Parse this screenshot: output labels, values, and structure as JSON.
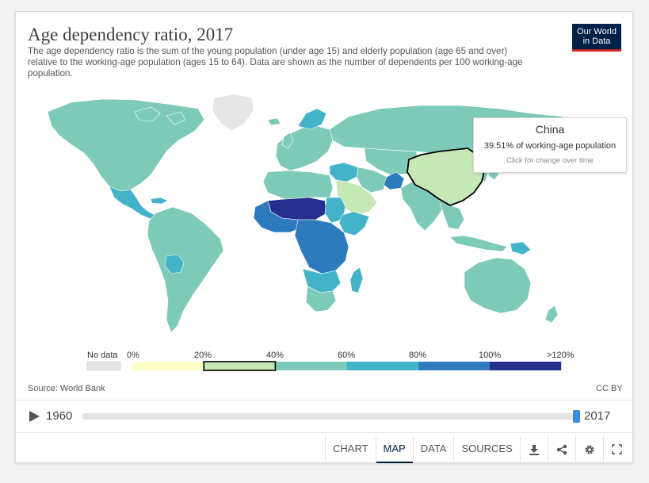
{
  "title": "Age dependency ratio, 2017",
  "subtitle": "The age dependency ratio is the sum of the young population (under age 15) and elderly population (age 65 and over) relative to the working-age population (ages 15 to 64). Data are shown as the number of dependents per 100 working-age population.",
  "logo": {
    "line1": "Our World",
    "line2": "in Data"
  },
  "tooltip": {
    "country": "China",
    "value": "39.51% of working-age population",
    "hint": "Click for change over time"
  },
  "legend": {
    "no_data_label": "No data",
    "bins": [
      {
        "from": "0%",
        "to": "20%",
        "color": "#ffffc6"
      },
      {
        "from": "20%",
        "to": "40%",
        "color": "#c6e8b5",
        "highlighted": true
      },
      {
        "from": "40%",
        "to": "60%",
        "color": "#7ecab8"
      },
      {
        "from": "60%",
        "to": "80%",
        "color": "#43b3c9"
      },
      {
        "from": "80%",
        "to": "100%",
        "color": "#2d7bbd"
      },
      {
        "from": "100%",
        "to": ">120%",
        "color": "#25308e"
      }
    ],
    "no_data_color": "#e6e6e6",
    "tick_labels": [
      "0%",
      "20%",
      "40%",
      "60%",
      "80%",
      "100%",
      ">120%"
    ]
  },
  "source": "Source: World Bank",
  "license": "CC BY",
  "timeline": {
    "start_year": "1960",
    "end_year": "2017",
    "position": 1.0
  },
  "tabs": {
    "chart": "CHART",
    "map": "MAP",
    "data": "DATA",
    "sources": "SOURCES",
    "active": "MAP"
  },
  "icons": [
    "play-icon",
    "download-icon",
    "share-icon",
    "settings-icon",
    "fullscreen-icon"
  ],
  "map_regions": [
    {
      "region": "North America",
      "color": "#7ecab8"
    },
    {
      "region": "Greenland",
      "color": "#e6e6e6"
    },
    {
      "region": "Central America",
      "color": "#43b3c9"
    },
    {
      "region": "South America",
      "color": "#7ecab8"
    },
    {
      "region": "Bolivia",
      "color": "#43b3c9"
    },
    {
      "region": "Europe",
      "color": "#7ecab8"
    },
    {
      "region": "Scandinavia",
      "color": "#43b3c9"
    },
    {
      "region": "Russia",
      "color": "#7ecab8"
    },
    {
      "region": "Kazakhstan & Central Asia",
      "color": "#7ecab8"
    },
    {
      "region": "North Africa",
      "color": "#7ecab8"
    },
    {
      "region": "Saudi Arabia & Gulf",
      "color": "#c6e8b5"
    },
    {
      "region": "Middle East",
      "color": "#43b3c9"
    },
    {
      "region": "Iran",
      "color": "#7ecab8"
    },
    {
      "region": "Afghanistan",
      "color": "#2d7bbd"
    },
    {
      "region": "Sahel",
      "color": "#25308e"
    },
    {
      "region": "West Africa",
      "color": "#2d7bbd"
    },
    {
      "region": "Sudan",
      "color": "#43b3c9"
    },
    {
      "region": "Ethiopia & Horn",
      "color": "#43b3c9"
    },
    {
      "region": "Central & East Africa",
      "color": "#2d7bbd"
    },
    {
      "region": "Southern Africa",
      "color": "#43b3c9"
    },
    {
      "region": "South Africa",
      "color": "#7ecab8"
    },
    {
      "region": "Madagascar",
      "color": "#43b3c9"
    },
    {
      "region": "India & South Asia",
      "color": "#7ecab8"
    },
    {
      "region": "China",
      "color": "#c6e8b5"
    },
    {
      "region": "Southeast Asia",
      "color": "#7ecab8"
    },
    {
      "region": "Japan & Korea",
      "color": "#7ecab8"
    },
    {
      "region": "Indonesia",
      "color": "#7ecab8"
    },
    {
      "region": "Papua New Guinea",
      "color": "#43b3c9"
    },
    {
      "region": "Australia",
      "color": "#7ecab8"
    },
    {
      "region": "New Zealand",
      "color": "#7ecab8"
    }
  ]
}
